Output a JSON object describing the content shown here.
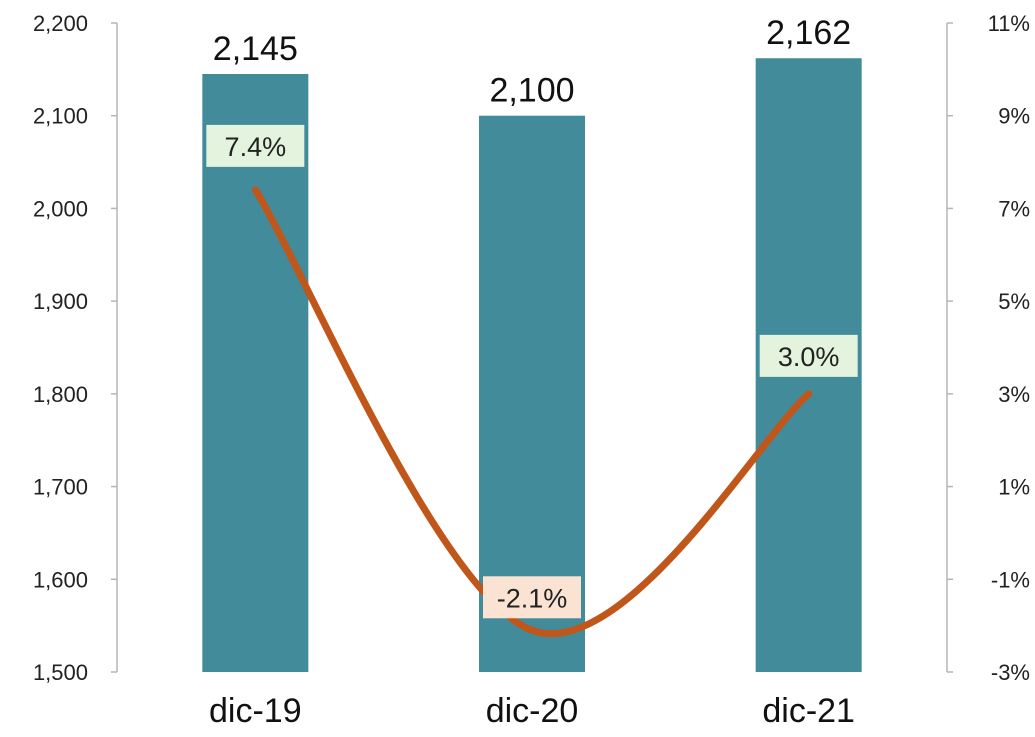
{
  "chart_data": {
    "type": "bar",
    "categories": [
      "dic-19",
      "dic-20",
      "dic-21"
    ],
    "series": [
      {
        "type": "bar",
        "axis": "left",
        "values": [
          2145,
          2100,
          2162
        ],
        "labels": [
          "2,145",
          "2,100",
          "2,162"
        ],
        "color": "#428b9a"
      },
      {
        "type": "line",
        "axis": "right",
        "values": [
          7.4,
          -2.1,
          3.0
        ],
        "labels": [
          "7.4%",
          "-2.1%",
          "3.0%"
        ],
        "color": "#c0561a",
        "label_backgrounds": [
          "#e4f3dd",
          "#fbe3d3",
          "#e4f3dd"
        ]
      }
    ],
    "y_left": {
      "lim": [
        1500,
        2200
      ],
      "ticks": [
        "1,500",
        "1,600",
        "1,700",
        "1,800",
        "1,900",
        "2,000",
        "2,100",
        "2,200"
      ]
    },
    "y_right": {
      "lim": [
        -3,
        11
      ],
      "ticks": [
        "-3%",
        "-1%",
        "1%",
        "3%",
        "5%",
        "7%",
        "9%",
        "11%"
      ]
    },
    "grid": false,
    "legend": "none"
  }
}
